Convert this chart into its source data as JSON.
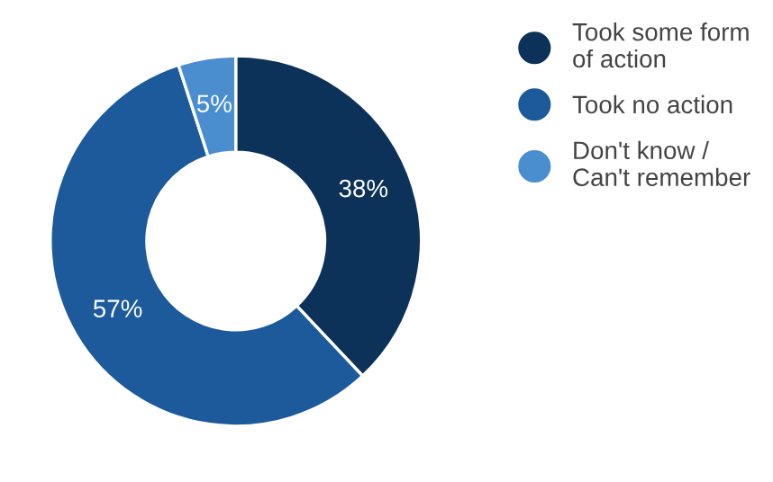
{
  "chart_data": {
    "type": "donut",
    "categories": [
      "Took some form of action",
      "Took no action",
      "Don't know / Can't remember"
    ],
    "values": [
      38,
      57,
      5
    ],
    "colors": [
      "#0c3259",
      "#1d5a9c",
      "#4a8ed0"
    ],
    "value_labels": [
      "38%",
      "57%",
      "5%"
    ],
    "legend": "right"
  }
}
